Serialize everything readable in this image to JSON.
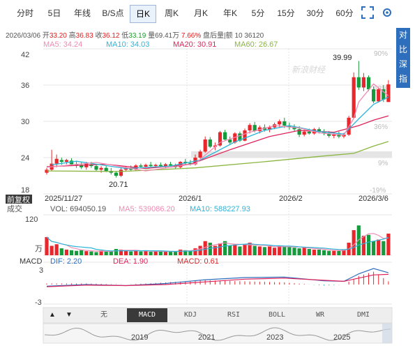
{
  "tabs": [
    "分时",
    "5日",
    "年线",
    "B/S点",
    "日K",
    "周K",
    "月K",
    "年K",
    "5分",
    "15分",
    "30分",
    "60分"
  ],
  "active_tab": "日K",
  "quote": {
    "date": "2026/03/06",
    "open_label": "开",
    "open": "33.20",
    "high_label": "高",
    "high": "36.83",
    "close_label": "收",
    "close": "36.12",
    "low_label": "低",
    "low": "33.19",
    "volume_label": "量",
    "volume": "69.41万",
    "change": "7.66%",
    "after_label": "盘后量|额",
    "after_value": "10 36120"
  },
  "side_panel": [
    "对",
    "比",
    "深",
    "指"
  ],
  "ma_legend": {
    "ma5": "MA5: 34.24",
    "ma10": "MA10: 34.03",
    "ma20": "MA20: 30.91",
    "ma60": "MA60: 26.67"
  },
  "colors": {
    "up": "#e8262b",
    "down": "#159a3c",
    "ma5": "#f08ab3",
    "ma10": "#2cb5d8",
    "ma20": "#e0225a",
    "ma60": "#8ab640",
    "accent": "#2e6fbd"
  },
  "price_axis": {
    "ticks": [
      "42",
      "36",
      "30",
      "24",
      "18"
    ],
    "pct_ticks": [
      "90%",
      "63%",
      "36%",
      "9%",
      "-19%"
    ]
  },
  "date_labels": [
    "2025/11/27",
    "2026/1",
    "2026/2",
    "2026/3/6"
  ],
  "annotations": {
    "max_label": "39.99",
    "min_label": "20.71"
  },
  "watermark": "新浪财经",
  "fuquan_label": "前复权",
  "volume_legend": {
    "label": "成交",
    "vol": "VOL: 694050.19",
    "ma5": "MA5: 539086.20",
    "ma10": "MA10: 588227.93"
  },
  "volume_axis": {
    "top": "120",
    "unit": "万"
  },
  "macd_legend": {
    "label": "MACD",
    "dif": "DIF: 2.20",
    "dea": "DEA: 1.90",
    "macd": "MACD: 0.61"
  },
  "macd_axis": {
    "top": "3",
    "bottom": "-3"
  },
  "indicator_tabs": [
    "无",
    "MACD",
    "KDJ",
    "RSI",
    "BOLL",
    "WR",
    "DMI"
  ],
  "active_indicator": "MACD",
  "nav_years": [
    "2019",
    "2021",
    "2023",
    "2025"
  ],
  "chart_data": {
    "type": "candlestick",
    "ylim": [
      18,
      42
    ],
    "candles": [
      [
        21.5,
        22.3,
        21.2,
        22.0
      ],
      [
        22.0,
        25.3,
        21.8,
        23.0
      ],
      [
        23.0,
        24.5,
        22.4,
        23.8
      ],
      [
        23.6,
        24.0,
        22.8,
        23.3
      ],
      [
        23.3,
        23.8,
        22.9,
        23.6
      ],
      [
        23.5,
        23.9,
        22.6,
        22.9
      ],
      [
        22.9,
        23.3,
        22.3,
        22.7
      ],
      [
        22.7,
        23.2,
        22.1,
        22.4
      ],
      [
        22.4,
        23.3,
        22.0,
        23.0
      ],
      [
        22.9,
        23.3,
        22.3,
        22.6
      ],
      [
        22.6,
        22.9,
        21.8,
        22.0
      ],
      [
        22.0,
        22.6,
        21.5,
        22.3
      ],
      [
        22.3,
        22.6,
        21.6,
        21.8
      ],
      [
        21.8,
        22.3,
        21.2,
        21.5
      ],
      [
        21.5,
        21.8,
        20.71,
        21.0
      ],
      [
        21.0,
        22.3,
        20.8,
        22.0
      ],
      [
        22.0,
        22.6,
        21.7,
        22.3
      ],
      [
        22.3,
        22.7,
        21.8,
        22.0
      ],
      [
        22.0,
        22.9,
        21.8,
        22.7
      ],
      [
        22.7,
        23.0,
        22.2,
        22.5
      ],
      [
        22.5,
        23.0,
        22.3,
        22.8
      ],
      [
        22.8,
        23.3,
        22.5,
        22.6
      ],
      [
        22.6,
        23.0,
        22.3,
        22.8
      ],
      [
        22.8,
        23.2,
        22.5,
        22.6
      ],
      [
        22.6,
        23.1,
        22.3,
        22.9
      ],
      [
        22.9,
        23.3,
        22.6,
        22.7
      ],
      [
        22.7,
        23.0,
        22.2,
        22.4
      ],
      [
        22.4,
        23.4,
        22.2,
        23.3
      ],
      [
        23.3,
        23.8,
        22.9,
        23.1
      ],
      [
        23.1,
        23.6,
        22.7,
        22.9
      ],
      [
        22.9,
        24.5,
        22.7,
        24.0
      ],
      [
        24.0,
        25.3,
        23.8,
        25.0
      ],
      [
        25.0,
        27.5,
        24.8,
        27.0
      ],
      [
        27.0,
        27.4,
        25.6,
        25.8
      ],
      [
        25.8,
        26.5,
        25.2,
        26.0
      ],
      [
        26.0,
        28.4,
        25.8,
        28.2
      ],
      [
        28.2,
        28.6,
        26.8,
        27.0
      ],
      [
        27.0,
        27.5,
        26.2,
        26.5
      ],
      [
        26.5,
        28.2,
        26.3,
        28.0
      ],
      [
        28.0,
        28.3,
        26.6,
        26.8
      ],
      [
        26.8,
        28.8,
        26.7,
        28.5
      ],
      [
        28.5,
        29.7,
        28.0,
        29.4
      ],
      [
        29.4,
        29.9,
        28.2,
        28.4
      ],
      [
        28.4,
        29.3,
        28.0,
        29.0
      ],
      [
        29.0,
        29.5,
        28.3,
        28.6
      ],
      [
        28.6,
        29.3,
        28.2,
        29.0
      ],
      [
        29.0,
        29.8,
        28.7,
        29.5
      ],
      [
        29.5,
        30.3,
        29.0,
        30.0
      ],
      [
        30.0,
        30.6,
        28.9,
        29.3
      ],
      [
        29.3,
        29.8,
        28.6,
        29.1
      ],
      [
        29.1,
        29.5,
        28.3,
        28.7
      ],
      [
        28.7,
        29.2,
        27.4,
        27.8
      ],
      [
        27.8,
        28.6,
        27.5,
        28.3
      ],
      [
        28.3,
        28.8,
        27.8,
        28.0
      ],
      [
        28.0,
        28.9,
        27.8,
        28.7
      ],
      [
        28.7,
        29.0,
        28.0,
        28.3
      ],
      [
        28.3,
        28.7,
        27.7,
        28.0
      ],
      [
        28.0,
        28.4,
        27.3,
        27.6
      ],
      [
        27.6,
        28.0,
        27.2,
        27.9
      ],
      [
        27.9,
        28.3,
        27.2,
        27.5
      ],
      [
        27.5,
        28.1,
        27.2,
        27.8
      ],
      [
        27.8,
        30.9,
        27.6,
        30.6
      ],
      [
        30.6,
        38.1,
        30.4,
        37.3
      ],
      [
        37.3,
        39.99,
        35.2,
        35.6
      ],
      [
        35.6,
        38.0,
        35.0,
        37.3
      ],
      [
        37.3,
        37.6,
        35.0,
        35.3
      ],
      [
        35.3,
        35.8,
        33.0,
        33.3
      ],
      [
        33.3,
        35.6,
        33.1,
        35.3
      ],
      [
        35.3,
        36.0,
        33.2,
        33.6
      ],
      [
        33.2,
        36.83,
        33.19,
        36.12
      ]
    ],
    "ma5": [
      [
        0,
        22.4
      ],
      [
        10,
        23.2
      ],
      [
        20,
        21.8
      ],
      [
        30,
        23.0
      ],
      [
        35,
        26.5
      ],
      [
        41,
        28.2
      ],
      [
        46,
        29.3
      ],
      [
        51,
        28.9
      ],
      [
        55,
        28.1
      ],
      [
        60,
        27.7
      ],
      [
        62,
        30.5
      ],
      [
        63,
        33.2
      ],
      [
        66,
        36.2
      ],
      [
        69,
        34.24
      ]
    ],
    "ma10": [
      [
        1,
        22.8
      ],
      [
        6,
        23.4
      ],
      [
        16,
        22.2
      ],
      [
        25,
        22.6
      ],
      [
        31,
        23.6
      ],
      [
        38,
        26.6
      ],
      [
        44,
        28.5
      ],
      [
        49,
        29.3
      ],
      [
        55,
        28.3
      ],
      [
        60,
        27.9
      ],
      [
        63,
        30.4
      ],
      [
        66,
        32.8
      ],
      [
        69,
        34.03
      ]
    ],
    "ma20": [
      [
        0,
        22.5
      ],
      [
        12,
        22.9
      ],
      [
        20,
        22.2
      ],
      [
        29,
        22.9
      ],
      [
        37,
        25.3
      ],
      [
        45,
        27.5
      ],
      [
        51,
        28.5
      ],
      [
        58,
        28.2
      ],
      [
        63,
        29.3
      ],
      [
        66,
        30.2
      ],
      [
        69,
        30.91
      ]
    ],
    "ma60": [
      [
        0,
        21.8
      ],
      [
        15,
        21.7
      ],
      [
        30,
        22.3
      ],
      [
        45,
        23.4
      ],
      [
        55,
        24.2
      ],
      [
        62,
        24.7
      ],
      [
        66,
        25.9
      ],
      [
        69,
        26.67
      ]
    ],
    "volume": [
      58,
      30,
      35,
      22,
      18,
      16,
      14,
      16,
      13,
      12,
      10,
      15,
      12,
      13,
      20,
      18,
      16,
      12,
      14,
      12,
      14,
      11,
      12,
      13,
      11,
      12,
      12,
      18,
      16,
      14,
      22,
      30,
      45,
      40,
      30,
      38,
      45,
      30,
      34,
      28,
      34,
      40,
      30,
      28,
      26,
      28,
      24,
      30,
      28,
      26,
      24,
      22,
      24,
      20,
      18,
      18,
      16,
      14,
      14,
      14,
      18,
      40,
      80,
      95,
      62,
      65,
      45,
      50,
      45,
      69
    ],
    "volume_ylim": [
      0,
      120
    ],
    "macd_dif": [
      [
        0,
        -0.3
      ],
      [
        8,
        0.0
      ],
      [
        16,
        -0.2
      ],
      [
        24,
        0.2
      ],
      [
        32,
        0.9
      ],
      [
        40,
        1.3
      ],
      [
        48,
        1.4
      ],
      [
        56,
        0.7
      ],
      [
        60,
        0.6
      ],
      [
        63,
        2.0
      ],
      [
        66,
        3.0
      ],
      [
        69,
        2.2
      ]
    ],
    "macd_dea": [
      [
        0,
        -0.4
      ],
      [
        8,
        -0.1
      ],
      [
        16,
        -0.2
      ],
      [
        24,
        0.0
      ],
      [
        32,
        0.5
      ],
      [
        40,
        1.0
      ],
      [
        48,
        1.2
      ],
      [
        56,
        0.8
      ],
      [
        60,
        0.6
      ],
      [
        63,
        1.2
      ],
      [
        66,
        1.8
      ],
      [
        69,
        1.9
      ]
    ],
    "macd_ylim": [
      -3,
      3
    ]
  }
}
